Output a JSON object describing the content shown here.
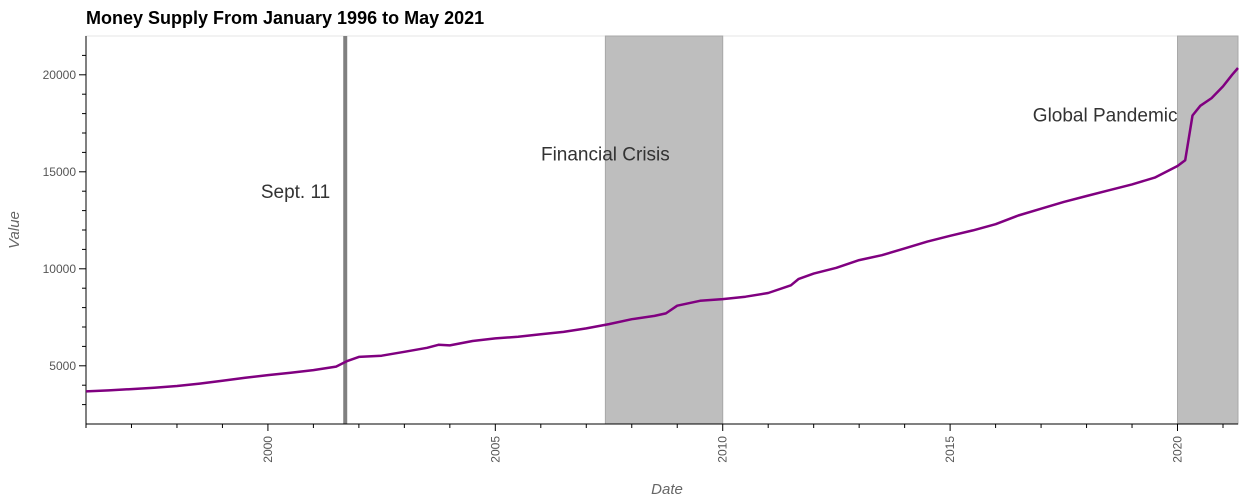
{
  "chart_data": {
    "type": "line",
    "title": "Money Supply From January 1996 to May 2021",
    "xlabel": "Date",
    "ylabel": "Value",
    "xlim": [
      1996.0,
      2021.33
    ],
    "ylim": [
      2000,
      22000
    ],
    "x_ticks": [
      2000,
      2005,
      2010,
      2015,
      2020
    ],
    "y_ticks": [
      5000,
      10000,
      15000,
      20000
    ],
    "grid": false,
    "line_color": "#800080",
    "series": [
      {
        "x": [
          1996.0,
          1996.5,
          1997.0,
          1997.5,
          1998.0,
          1998.5,
          1999.0,
          1999.5,
          2000.0,
          2000.5,
          2001.0,
          2001.5,
          2001.75,
          2002.0,
          2002.5,
          2003.0,
          2003.5,
          2003.75,
          2004.0,
          2004.5,
          2005.0,
          2005.5,
          2006.0,
          2006.5,
          2007.0,
          2007.5,
          2008.0,
          2008.5,
          2008.75,
          2009.0,
          2009.5,
          2010.0,
          2010.5,
          2011.0,
          2011.5,
          2011.67,
          2012.0,
          2012.5,
          2013.0,
          2013.5,
          2014.0,
          2014.5,
          2015.0,
          2015.5,
          2016.0,
          2016.5,
          2017.0,
          2017.5,
          2018.0,
          2018.5,
          2019.0,
          2019.5,
          2020.0,
          2020.17,
          2020.33,
          2020.5,
          2020.75,
          2021.0,
          2021.2,
          2021.33
        ],
        "values": [
          3680,
          3730,
          3800,
          3870,
          3960,
          4080,
          4230,
          4380,
          4520,
          4640,
          4780,
          4960,
          5250,
          5460,
          5520,
          5720,
          5930,
          6080,
          6050,
          6280,
          6410,
          6500,
          6630,
          6750,
          6930,
          7150,
          7400,
          7570,
          7700,
          8100,
          8350,
          8440,
          8560,
          8750,
          9150,
          9480,
          9750,
          10050,
          10450,
          10700,
          11050,
          11400,
          11700,
          11980,
          12300,
          12750,
          13100,
          13450,
          13750,
          14050,
          14350,
          14700,
          15300,
          15600,
          17900,
          18400,
          18800,
          19400,
          20000,
          20350
        ]
      }
    ],
    "annotations": [
      {
        "label": "Sept. 11",
        "x": 2001.7
      },
      {
        "label": "Financial Crisis",
        "x_start": 2007.42,
        "x_end": 2010.0
      },
      {
        "label": "Global Pandemic",
        "x_start": 2020.0,
        "x_end": 2021.33
      }
    ],
    "shade_color": "#bebebe",
    "event_line_color": "#808080"
  }
}
